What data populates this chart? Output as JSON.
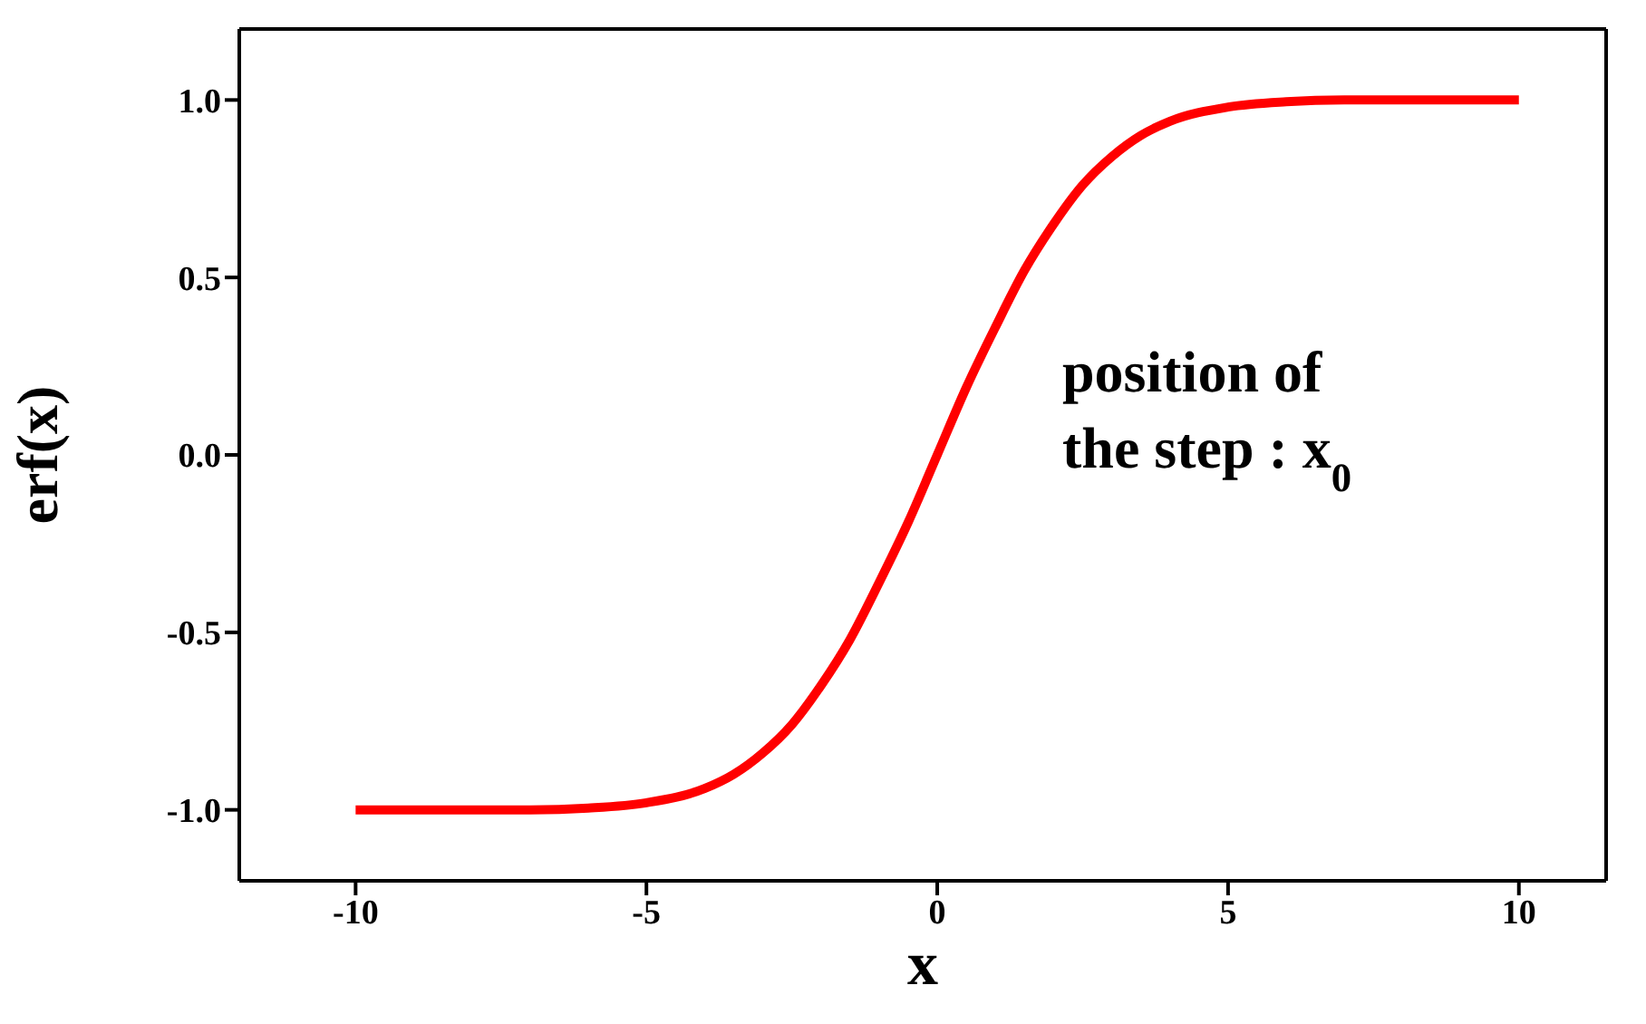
{
  "chart_data": {
    "type": "line",
    "xlabel": "x",
    "ylabel": "erf(x)",
    "annotations": [
      "position of the step : x$_{0}$"
    ],
    "x": [
      -10,
      -9,
      -8,
      -7,
      -6,
      -5,
      -4,
      -3.5,
      -3,
      -2.5,
      -2,
      -1.5,
      -1,
      -0.5,
      0,
      0.5,
      1,
      1.5,
      2,
      2.5,
      3,
      3.5,
      4,
      5,
      6,
      7,
      8,
      9,
      10
    ],
    "series": [
      {
        "color": "#ff0000",
        "values": [
          -1,
          -1,
          -1,
          -1,
          -0.995,
          -0.98,
          -0.94,
          -0.9,
          -0.84,
          -0.76,
          -0.65,
          -0.52,
          -0.36,
          -0.19,
          0,
          0.19,
          0.36,
          0.52,
          0.65,
          0.76,
          0.84,
          0.9,
          0.94,
          0.98,
          0.995,
          1,
          1,
          1,
          1
        ]
      }
    ],
    "xlim": [
      -12,
      11.5
    ],
    "xticks": [
      -10,
      -5,
      0,
      5,
      10
    ],
    "ylim": [
      -1.2,
      1.2
    ],
    "yticks": [
      {
        "value": -1,
        "label": "-1.0"
      },
      {
        "value": -0.5,
        "label": "-0.5"
      },
      {
        "value": 0,
        "label": "0.0"
      },
      {
        "value": 0.5,
        "label": "0.5"
      },
      {
        "value": 1,
        "label": "1.0"
      }
    ],
    "grid": false,
    "marker": "none",
    "line_style": "solid"
  }
}
